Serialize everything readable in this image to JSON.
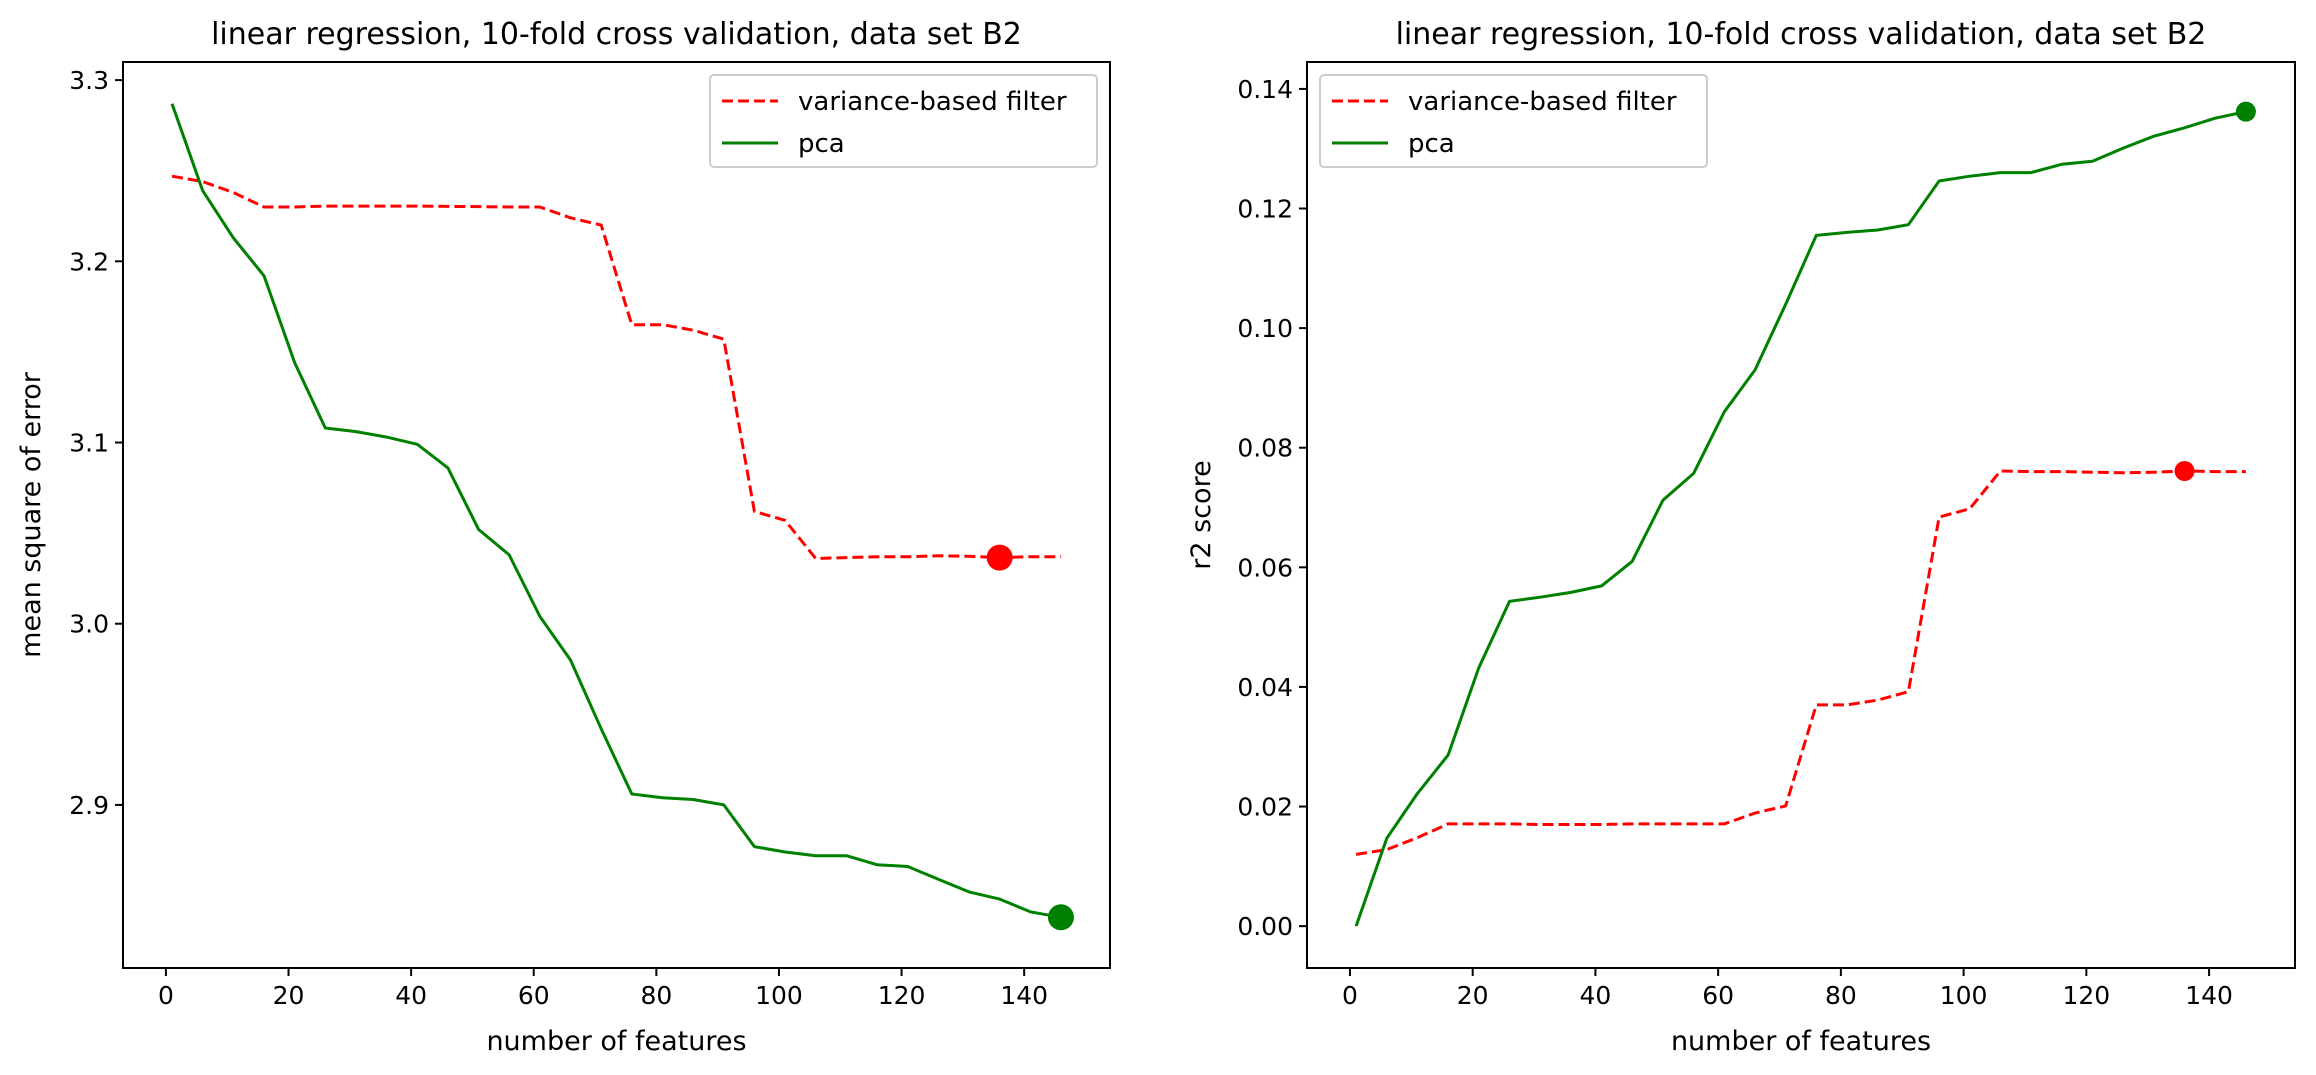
{
  "chart_data": [
    {
      "type": "line",
      "title": "linear regression, 10-fold cross validation, data set B2",
      "xlabel": "number of features",
      "ylabel": "mean square of error",
      "xlim": [
        -7,
        154
      ],
      "ylim": [
        2.81,
        3.31
      ],
      "xticks": [
        0,
        20,
        40,
        60,
        80,
        100,
        120,
        140
      ],
      "yticks": [
        2.9,
        3.0,
        3.1,
        3.2,
        3.3
      ],
      "ytick_decimals": 1,
      "grid": false,
      "legend_position": "top-right",
      "x": [
        1,
        6,
        11,
        16,
        21,
        26,
        31,
        36,
        41,
        46,
        51,
        56,
        61,
        66,
        71,
        76,
        81,
        86,
        91,
        96,
        101,
        106,
        111,
        116,
        121,
        126,
        131,
        136,
        141,
        146
      ],
      "series": [
        {
          "name": "variance-based filter",
          "color": "#ff0000",
          "dash": true,
          "values": [
            3.247,
            3.244,
            3.238,
            3.23,
            3.23,
            3.2305,
            3.2305,
            3.2305,
            3.2305,
            3.2303,
            3.2302,
            3.23,
            3.23,
            3.224,
            3.22,
            3.165,
            3.165,
            3.162,
            3.157,
            3.062,
            3.057,
            3.036,
            3.0365,
            3.037,
            3.037,
            3.0375,
            3.0372,
            3.0365,
            3.037,
            3.037
          ],
          "best": {
            "x": 136,
            "y": 3.0365
          }
        },
        {
          "name": "pca",
          "color": "#008000",
          "dash": false,
          "values": [
            3.287,
            3.239,
            3.213,
            3.192,
            3.144,
            3.108,
            3.106,
            3.103,
            3.099,
            3.086,
            3.052,
            3.038,
            3.004,
            2.98,
            2.942,
            2.906,
            2.904,
            2.903,
            2.9,
            2.877,
            2.874,
            2.872,
            2.872,
            2.867,
            2.866,
            2.859,
            2.852,
            2.848,
            2.841,
            2.838
          ],
          "best": {
            "x": 146,
            "y": 2.838
          }
        }
      ]
    },
    {
      "type": "line",
      "title": "linear regression, 10-fold cross validation, data set B2",
      "xlabel": "number of features",
      "ylabel": "r2 score",
      "xlim": [
        -7,
        154
      ],
      "ylim": [
        -0.007,
        0.1445
      ],
      "xticks": [
        0,
        20,
        40,
        60,
        80,
        100,
        120,
        140
      ],
      "yticks": [
        0.0,
        0.02,
        0.04,
        0.06,
        0.08,
        0.1,
        0.12,
        0.14
      ],
      "ytick_decimals": 2,
      "grid": false,
      "legend_position": "top-left",
      "x": [
        1,
        6,
        11,
        16,
        21,
        26,
        31,
        36,
        41,
        46,
        51,
        56,
        61,
        66,
        71,
        76,
        81,
        86,
        91,
        96,
        101,
        106,
        111,
        116,
        121,
        126,
        131,
        136,
        141,
        146
      ],
      "series": [
        {
          "name": "variance-based filter",
          "color": "#ff0000",
          "dash": true,
          "values": [
            0.012,
            0.0128,
            0.0148,
            0.0171,
            0.0171,
            0.0171,
            0.017,
            0.017,
            0.017,
            0.0171,
            0.0171,
            0.0171,
            0.0171,
            0.0189,
            0.0201,
            0.037,
            0.037,
            0.0378,
            0.0392,
            0.0684,
            0.0698,
            0.0761,
            0.076,
            0.076,
            0.0759,
            0.0758,
            0.0759,
            0.0761,
            0.076,
            0.076
          ],
          "best": {
            "x": 136,
            "y": 0.0761
          }
        },
        {
          "name": "pca",
          "color": "#008000",
          "dash": false,
          "values": [
            0.0,
            0.0147,
            0.0222,
            0.0286,
            0.0432,
            0.0543,
            0.055,
            0.0558,
            0.0569,
            0.061,
            0.0712,
            0.0757,
            0.086,
            0.093,
            0.104,
            0.1155,
            0.116,
            0.1164,
            0.1173,
            0.1246,
            0.1254,
            0.126,
            0.126,
            0.1274,
            0.1279,
            0.1301,
            0.1321,
            0.1335,
            0.1351,
            0.1362
          ],
          "best": {
            "x": 146,
            "y": 0.1362
          }
        }
      ]
    }
  ]
}
